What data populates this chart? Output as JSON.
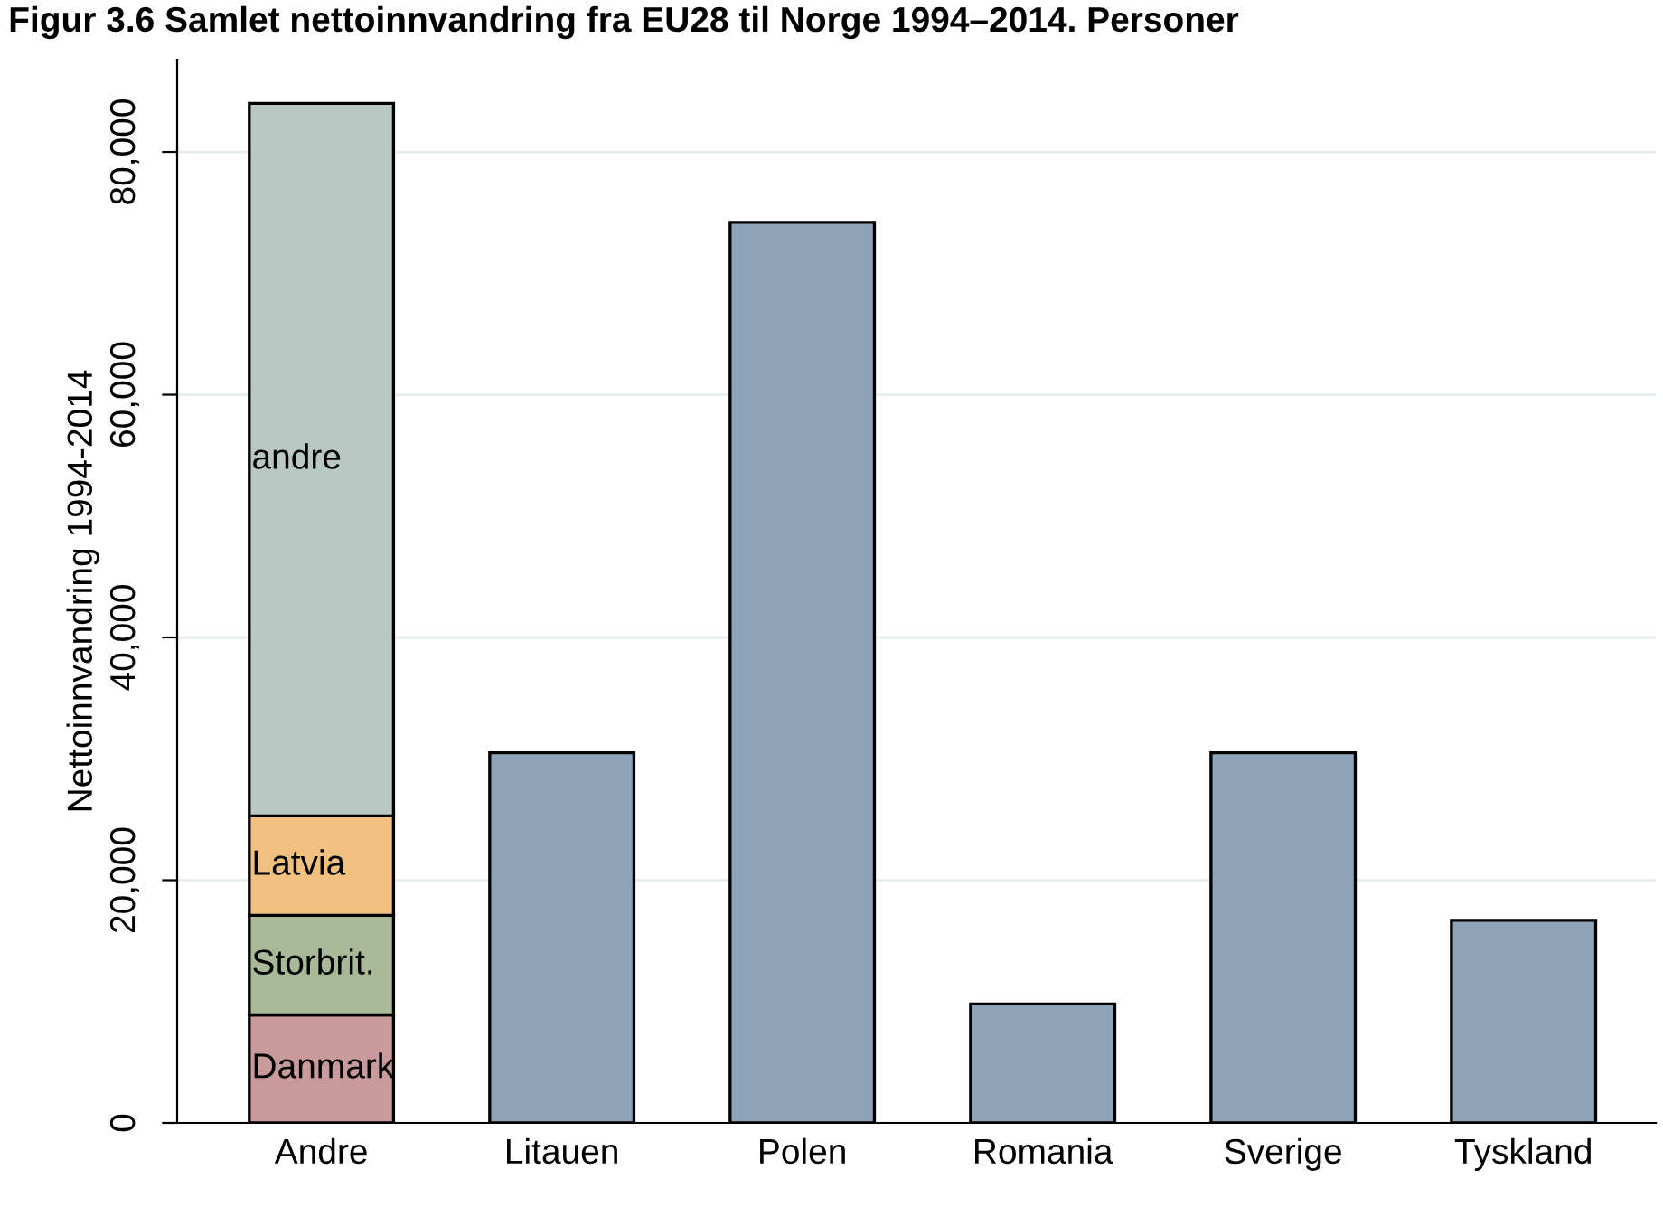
{
  "chart_data": {
    "type": "bar",
    "stacked": true,
    "title": "Figur 3.6 Samlet nettoinnvandring fra EU28 til Norge 1994–2014. Personer",
    "ylabel": "Nettoinnvandring 1994-2014",
    "categories": [
      "Andre",
      "Litauen",
      "Polen",
      "Romania",
      "Sverige",
      "Tyskland"
    ],
    "series": [
      {
        "name": "Danmark",
        "color": "#c99a9b",
        "values": [
          8900,
          null,
          null,
          null,
          null,
          null
        ]
      },
      {
        "name": "Storbrit.",
        "color": "#a9b896",
        "values": [
          8200,
          null,
          null,
          null,
          null,
          null
        ]
      },
      {
        "name": "Latvia",
        "color": "#f0c080",
        "values": [
          8200,
          null,
          null,
          null,
          null,
          null
        ]
      },
      {
        "name": "andre",
        "color": "#b9c8c2",
        "values": [
          58700,
          null,
          null,
          null,
          null,
          null
        ]
      },
      {
        "color": "#8da3b8",
        "values": [
          null,
          30500,
          74200,
          9800,
          30500,
          16700
        ]
      }
    ],
    "ylim": [
      0,
      87600
    ],
    "yticks": [
      0,
      {
        "value": 20000,
        "label": "20,000"
      },
      {
        "value": 40000,
        "label": "40,000"
      },
      {
        "value": 60000,
        "label": "60,000"
      },
      {
        "value": 80000,
        "label": "80,000"
      }
    ],
    "grid": "y",
    "legend": false
  }
}
